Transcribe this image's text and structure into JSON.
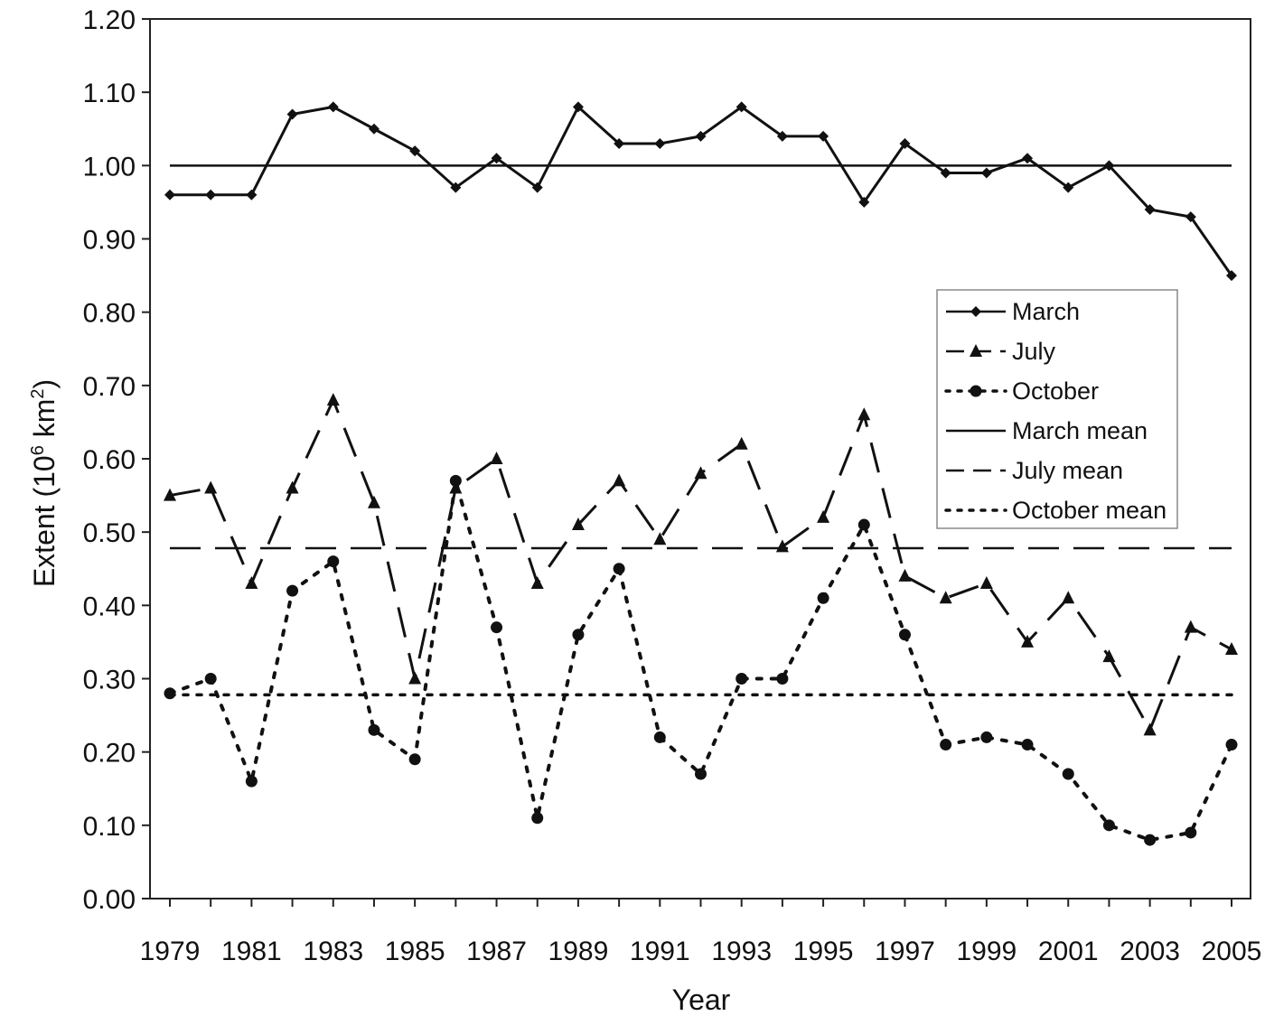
{
  "chart_data": {
    "type": "line",
    "xlabel": "Year",
    "ylabel": "Extent (10",
    "ylabel_sup1": "6",
    "ylabel_mid": " km",
    "ylabel_sup2": "2",
    "ylabel_end": ")",
    "ylim": [
      0,
      1.2
    ],
    "yticks": [
      "0.00",
      "0.10",
      "0.20",
      "0.30",
      "0.40",
      "0.50",
      "0.60",
      "0.70",
      "0.80",
      "0.90",
      "1.00",
      "1.10",
      "1.20"
    ],
    "xlim": [
      1979,
      2005
    ],
    "xtick_labels": [
      "1979",
      "1981",
      "1983",
      "1985",
      "1987",
      "1989",
      "1991",
      "1993",
      "1995",
      "1997",
      "1999",
      "2001",
      "2003",
      "2005"
    ],
    "grid": false,
    "legend_position": "right",
    "x": [
      1979,
      1980,
      1981,
      1982,
      1983,
      1984,
      1985,
      1986,
      1987,
      1988,
      1989,
      1990,
      1991,
      1992,
      1993,
      1994,
      1995,
      1996,
      1997,
      1998,
      1999,
      2000,
      2001,
      2002,
      2003,
      2004,
      2005
    ],
    "series": [
      {
        "name": "March",
        "style": "solid",
        "marker": "diamond",
        "values": [
          0.96,
          0.96,
          0.96,
          1.07,
          1.08,
          1.05,
          1.02,
          0.97,
          1.01,
          0.97,
          1.08,
          1.03,
          1.03,
          1.04,
          1.08,
          1.04,
          1.04,
          0.95,
          1.03,
          0.99,
          0.99,
          1.01,
          0.97,
          1.0,
          0.94,
          0.93,
          0.85
        ]
      },
      {
        "name": "July",
        "style": "dashed",
        "marker": "triangle",
        "values": [
          0.55,
          0.56,
          0.43,
          0.56,
          0.68,
          0.54,
          0.3,
          0.56,
          0.6,
          0.43,
          0.51,
          0.57,
          0.49,
          0.58,
          0.62,
          0.48,
          0.52,
          0.66,
          0.44,
          0.41,
          0.43,
          0.35,
          0.41,
          0.33,
          0.23,
          0.37,
          0.34
        ]
      },
      {
        "name": "October",
        "style": "dotted",
        "marker": "circle",
        "values": [
          0.28,
          0.3,
          0.16,
          0.42,
          0.46,
          0.23,
          0.19,
          0.57,
          0.37,
          0.11,
          0.36,
          0.45,
          0.22,
          0.17,
          0.3,
          0.3,
          0.41,
          0.51,
          0.36,
          0.21,
          0.22,
          0.21,
          0.17,
          0.1,
          0.08,
          0.09,
          0.21
        ]
      }
    ],
    "means": [
      {
        "name": "March mean",
        "style": "solid",
        "value": 1.0
      },
      {
        "name": "July mean",
        "style": "dashed",
        "value": 0.478
      },
      {
        "name": "October mean",
        "style": "dotted",
        "value": 0.278
      }
    ]
  }
}
